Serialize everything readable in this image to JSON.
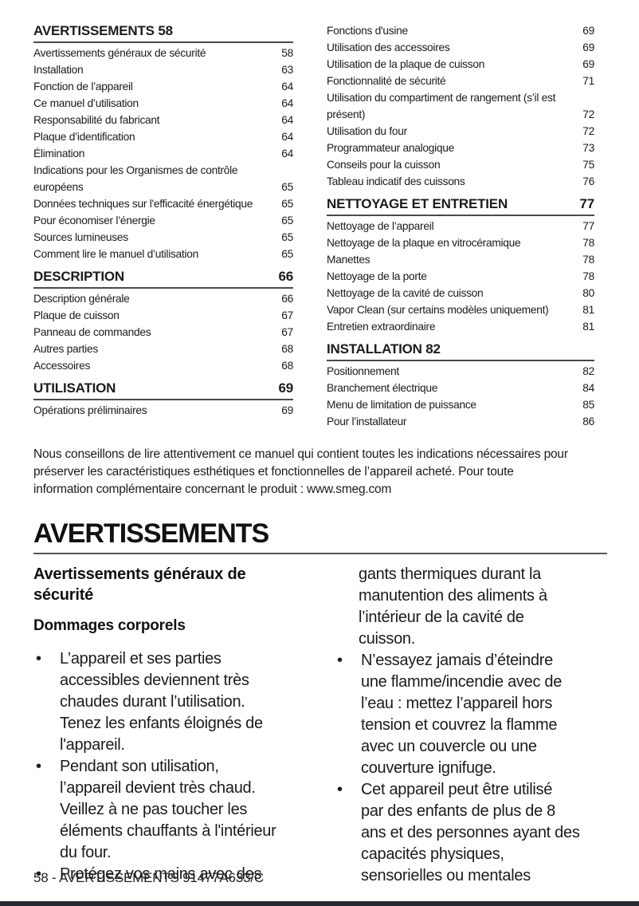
{
  "toc": {
    "columns": [
      {
        "sections": [
          {
            "title": "AVERTISSEMENTS 58",
            "page": "",
            "entries": [
              {
                "label": "Avertissements généraux de sécurité",
                "page": "58"
              },
              {
                "label": "Installation",
                "page": "63"
              },
              {
                "label": "Fonction de l’appareil",
                "page": "64"
              },
              {
                "label": "Ce manuel d’utilisation",
                "page": "64"
              },
              {
                "label": "Responsabilité du fabricant",
                "page": "64"
              },
              {
                "label": "Plaque d’identification",
                "page": "64"
              },
              {
                "label": "Élimination",
                "page": "64"
              },
              {
                "label": "Indications pour les Organismes de contrôle\neuropéens",
                "page": "65"
              },
              {
                "label": "Données techniques sur l'efficacité énergétique",
                "page": "65"
              },
              {
                "label": "Pour économiser l’énergie",
                "page": "65"
              },
              {
                "label": "Sources lumineuses",
                "page": "65"
              },
              {
                "label": "Comment lire le manuel d’utilisation",
                "page": "65"
              }
            ]
          },
          {
            "title": "DESCRIPTION",
            "page": "66",
            "entries": [
              {
                "label": "Description générale",
                "page": "66"
              },
              {
                "label": "Plaque de cuisson",
                "page": "67"
              },
              {
                "label": "Panneau de commandes",
                "page": "67"
              },
              {
                "label": "Autres parties",
                "page": "68"
              },
              {
                "label": "Accessoires",
                "page": "68"
              }
            ]
          },
          {
            "title": "UTILISATION",
            "page": "69",
            "entries": [
              {
                "label": "Opérations préliminaires",
                "page": "69"
              }
            ]
          }
        ]
      },
      {
        "sections": [
          {
            "title": "",
            "page": "",
            "entries": [
              {
                "label": "Fonctions d'usine",
                "page": "69"
              },
              {
                "label": "Utilisation des accessoires",
                "page": "69"
              },
              {
                "label": "Utilisation de la plaque de cuisson",
                "page": "69"
              },
              {
                "label": "Fonctionnalité de sécurité",
                "page": "71"
              },
              {
                "label": "Utilisation du compartiment de rangement (s’il est\nprésent)",
                "page": "72"
              },
              {
                "label": "Utilisation du four",
                "page": "72"
              },
              {
                "label": "Programmateur analogique",
                "page": "73"
              },
              {
                "label": "Conseils pour la cuisson",
                "page": "75"
              },
              {
                "label": "Tableau indicatif des cuissons",
                "page": "76"
              }
            ]
          },
          {
            "title": "NETTOYAGE ET ENTRETIEN",
            "page": "77",
            "entries": [
              {
                "label": "Nettoyage de l’appareil",
                "page": "77"
              },
              {
                "label": "Nettoyage de la plaque en vitrocéramique",
                "page": "78"
              },
              {
                "label": "Manettes",
                "page": "78"
              },
              {
                "label": "Nettoyage de la porte",
                "page": "78"
              },
              {
                "label": "Nettoyage de la cavité de cuisson",
                "page": "80"
              },
              {
                "label": "Vapor Clean (sur certains modèles uniquement)",
                "page": "81"
              },
              {
                "label": "Entretien extraordinaire",
                "page": "81"
              }
            ]
          },
          {
            "title": "INSTALLATION 82",
            "page": "",
            "entries": [
              {
                "label": "Positionnement",
                "page": "82"
              },
              {
                "label": "Branchement électrique",
                "page": "84"
              },
              {
                "label": "Menu de limitation de puissance",
                "page": "85"
              },
              {
                "label": "Pour l’installateur",
                "page": "86"
              }
            ]
          }
        ]
      }
    ]
  },
  "intro": {
    "text": "Nous conseillons de lire attentivement ce manuel qui contient toutes les indications nécessaires pour\npréserver les caractéristiques esthétiques et fonctionnelles de l’appareil acheté. Pour toute\ninformation complémentaire concernant le produit : www.smeg.com"
  },
  "warnings": {
    "title": "AVERTISSEMENTS",
    "subheading": "Avertissements généraux de\nsécurité",
    "category_heading": "Dommages corporels",
    "left_bullets": [
      "L’appareil et ses parties\naccessibles deviennent très\nchaudes durant l’utilisation.\nTenez les enfants éloignés de\nl'appareil.",
      "Pendant son utilisation,\nl’appareil devient très chaud.\nVeillez à ne pas toucher les\néléments chauffants à l'intérieur\ndu four.",
      "Protégez vos mains avec des"
    ],
    "right_continuation": "gants thermiques durant la\nmanutention des aliments à\nl’intérieur de la cavité de\ncuisson.",
    "right_bullets": [
      "N’essayez jamais d’éteindre\nune flamme/incendie avec de\nl’eau : mettez l’appareil hors\ntension et couvrez la flamme\navec un couvercle ou une\ncouverture ignifuge.",
      "Cet appareil peut être utilisé\npar des enfants de plus de 8\nans et des personnes ayant des\ncapacités physiques,\nsensorielles ou mentales"
    ]
  },
  "footer": {
    "text": "58 - AVERTISSEMENTS 91477A633/C"
  },
  "colors": {
    "text": "#1b1b1b",
    "rule": "#4a4a4a",
    "bottom_bar": "#262a30"
  }
}
